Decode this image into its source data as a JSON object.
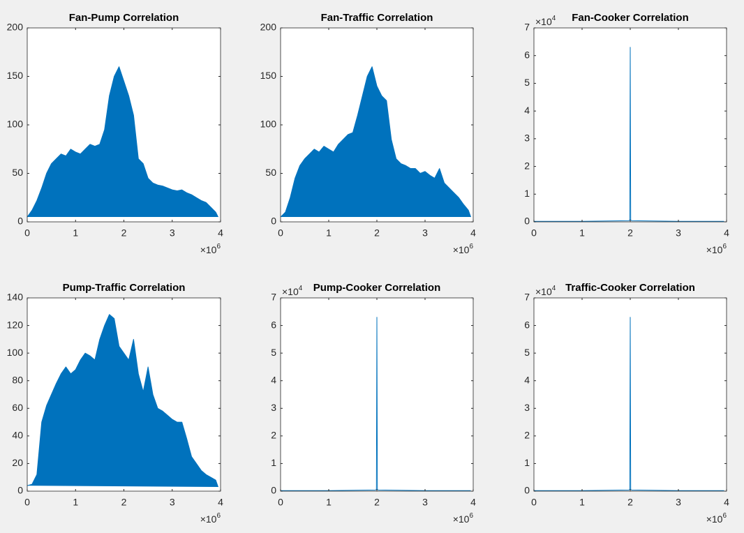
{
  "chart_data": [
    {
      "type": "line",
      "title": "Fan-Pump Correlation",
      "color": "#0072bd",
      "fill": true,
      "x": [
        0,
        0.1,
        0.2,
        0.3,
        0.4,
        0.5,
        0.6,
        0.7,
        0.8,
        0.9,
        1,
        1.1,
        1.2,
        1.3,
        1.4,
        1.5,
        1.6,
        1.7,
        1.8,
        1.9,
        2,
        2.1,
        2.2,
        2.3,
        2.4,
        2.5,
        2.6,
        2.7,
        2.8,
        2.9,
        3,
        3.1,
        3.2,
        3.3,
        3.4,
        3.5,
        3.6,
        3.7,
        3.8,
        3.9,
        3.95
      ],
      "values": [
        5,
        12,
        22,
        35,
        50,
        60,
        65,
        70,
        68,
        75,
        72,
        70,
        75,
        80,
        78,
        80,
        95,
        130,
        150,
        160,
        145,
        130,
        110,
        65,
        60,
        45,
        40,
        38,
        37,
        35,
        33,
        32,
        33,
        30,
        28,
        25,
        22,
        20,
        15,
        10,
        5
      ],
      "xlim": [
        0,
        4
      ],
      "xticks": [
        0,
        1,
        2,
        3,
        4
      ],
      "ylim": [
        0,
        200
      ],
      "yticks": [
        0,
        50,
        100,
        150,
        200
      ],
      "x_exponent_base": "×10",
      "x_exponent": "6"
    },
    {
      "type": "line",
      "title": "Fan-Traffic Correlation",
      "color": "#0072bd",
      "fill": true,
      "x": [
        0,
        0.1,
        0.2,
        0.3,
        0.4,
        0.5,
        0.6,
        0.7,
        0.8,
        0.9,
        1,
        1.1,
        1.2,
        1.3,
        1.4,
        1.5,
        1.6,
        1.7,
        1.8,
        1.9,
        2,
        2.1,
        2.2,
        2.3,
        2.4,
        2.5,
        2.6,
        2.7,
        2.8,
        2.9,
        3,
        3.1,
        3.2,
        3.3,
        3.4,
        3.5,
        3.6,
        3.7,
        3.8,
        3.9,
        3.95
      ],
      "values": [
        5,
        10,
        25,
        45,
        58,
        65,
        70,
        75,
        72,
        78,
        75,
        72,
        80,
        85,
        90,
        92,
        110,
        130,
        150,
        160,
        140,
        130,
        125,
        85,
        65,
        60,
        58,
        55,
        55,
        50,
        52,
        48,
        45,
        55,
        40,
        35,
        30,
        25,
        18,
        12,
        5
      ],
      "xlim": [
        0,
        4
      ],
      "xticks": [
        0,
        1,
        2,
        3,
        4
      ],
      "ylim": [
        0,
        200
      ],
      "yticks": [
        0,
        50,
        100,
        150,
        200
      ],
      "x_exponent_base": "×10",
      "x_exponent": "6"
    },
    {
      "type": "line",
      "title": "Fan-Cooker Correlation",
      "color": "#0072bd",
      "fill": false,
      "x": [
        0,
        1,
        1.97,
        1.99,
        2,
        2.01,
        2.03,
        3,
        3.95
      ],
      "values": [
        0.02,
        0.02,
        0.04,
        0.06,
        6.3,
        0.06,
        0.04,
        0.02,
        0.02
      ],
      "xlim": [
        0,
        4
      ],
      "xticks": [
        0,
        1,
        2,
        3,
        4
      ],
      "ylim": [
        0,
        7
      ],
      "yticks": [
        0,
        1,
        2,
        3,
        4,
        5,
        6,
        7
      ],
      "x_exponent_base": "×10",
      "x_exponent": "6",
      "y_exponent_base": "×10",
      "y_exponent": "4"
    },
    {
      "type": "line",
      "title": "Pump-Traffic Correlation",
      "color": "#0072bd",
      "fill": true,
      "x": [
        0,
        0.1,
        0.2,
        0.3,
        0.4,
        0.5,
        0.6,
        0.7,
        0.8,
        0.9,
        1,
        1.1,
        1.2,
        1.3,
        1.4,
        1.5,
        1.6,
        1.7,
        1.8,
        1.9,
        2,
        2.1,
        2.2,
        2.3,
        2.4,
        2.5,
        2.6,
        2.7,
        2.8,
        2.9,
        3,
        3.1,
        3.2,
        3.3,
        3.4,
        3.5,
        3.6,
        3.7,
        3.8,
        3.9,
        3.95
      ],
      "values": [
        4,
        5,
        12,
        50,
        62,
        70,
        78,
        85,
        90,
        85,
        88,
        95,
        100,
        98,
        95,
        110,
        120,
        128,
        125,
        105,
        100,
        95,
        110,
        85,
        72,
        90,
        70,
        60,
        58,
        55,
        52,
        50,
        50,
        38,
        25,
        20,
        15,
        12,
        10,
        8,
        3
      ],
      "xlim": [
        0,
        4
      ],
      "xticks": [
        0,
        1,
        2,
        3,
        4
      ],
      "ylim": [
        0,
        140
      ],
      "yticks": [
        0,
        20,
        40,
        60,
        80,
        100,
        120,
        140
      ],
      "x_exponent_base": "×10",
      "x_exponent": "6"
    },
    {
      "type": "line",
      "title": "Pump-Cooker Correlation",
      "color": "#0072bd",
      "fill": false,
      "x": [
        0,
        1,
        1.97,
        1.99,
        2,
        2.01,
        2.03,
        3,
        3.95
      ],
      "values": [
        0.02,
        0.02,
        0.04,
        0.06,
        6.3,
        0.06,
        0.04,
        0.02,
        0.02
      ],
      "xlim": [
        0,
        4
      ],
      "xticks": [
        0,
        1,
        2,
        3,
        4
      ],
      "ylim": [
        0,
        7
      ],
      "yticks": [
        0,
        1,
        2,
        3,
        4,
        5,
        6,
        7
      ],
      "x_exponent_base": "×10",
      "x_exponent": "6",
      "y_exponent_base": "×10",
      "y_exponent": "4"
    },
    {
      "type": "line",
      "title": "Traffic-Cooker Correlation",
      "color": "#0072bd",
      "fill": false,
      "x": [
        0,
        1,
        1.97,
        1.99,
        2,
        2.01,
        2.03,
        3,
        3.95
      ],
      "values": [
        0.02,
        0.02,
        0.04,
        0.06,
        6.3,
        0.06,
        0.04,
        0.02,
        0.02
      ],
      "xlim": [
        0,
        4
      ],
      "xticks": [
        0,
        1,
        2,
        3,
        4
      ],
      "ylim": [
        0,
        7
      ],
      "yticks": [
        0,
        1,
        2,
        3,
        4,
        5,
        6,
        7
      ],
      "x_exponent_base": "×10",
      "x_exponent": "6",
      "y_exponent_base": "×10",
      "y_exponent": "4"
    }
  ]
}
